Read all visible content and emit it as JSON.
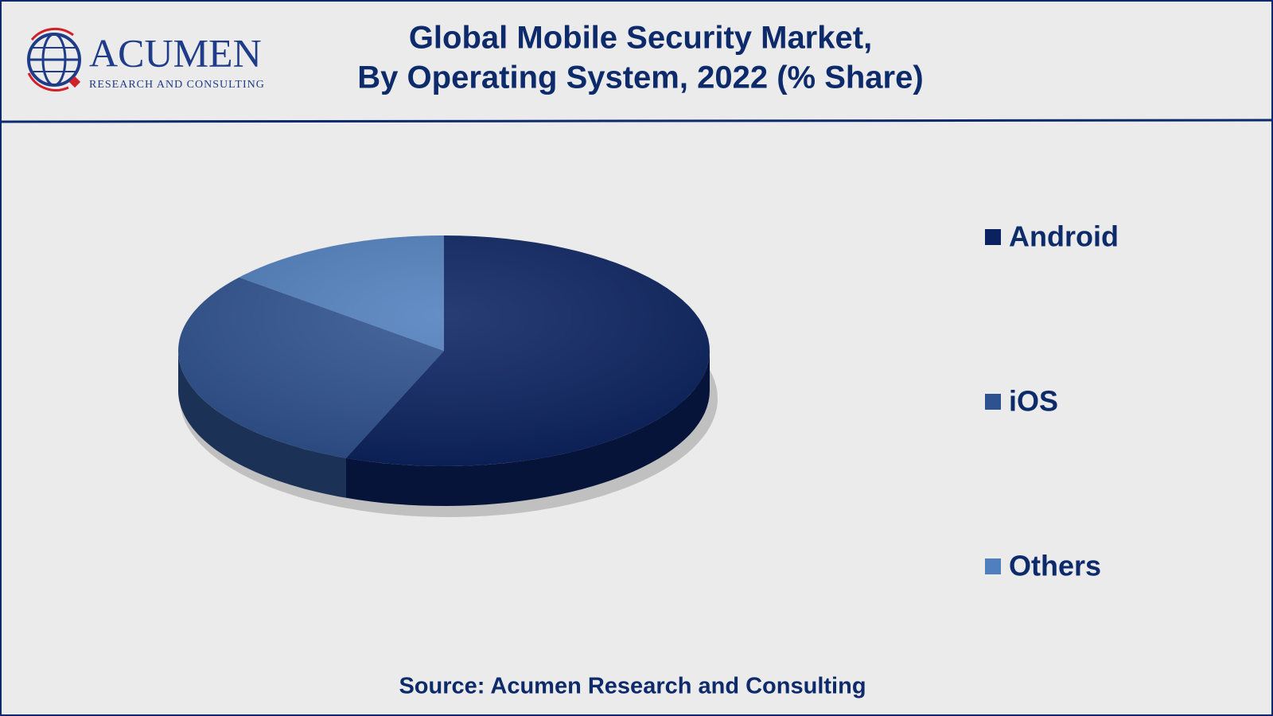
{
  "logo": {
    "name": "ACUMEN",
    "tagline": "RESEARCH AND CONSULTING"
  },
  "chart_data": {
    "type": "pie",
    "title": "Global Mobile Security Market,",
    "subtitle": "By Operating System, 2022 (% Share)",
    "categories": [
      "Android",
      "iOS",
      "Others"
    ],
    "values": [
      56,
      30,
      14
    ],
    "colors": [
      "#0a2260",
      "#2e5290",
      "#4f7fbd"
    ],
    "legend": "right",
    "source": "Source: Acumen Research and Consulting"
  }
}
